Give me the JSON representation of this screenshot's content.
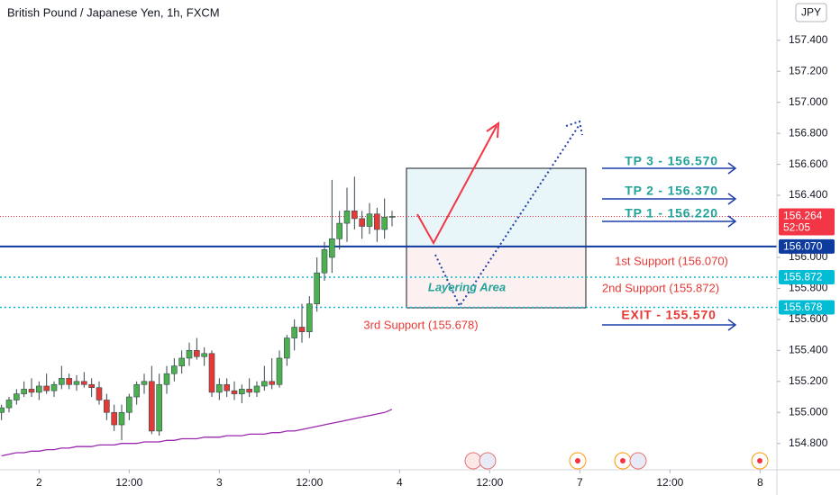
{
  "chart_data": {
    "type": "candlestick",
    "title": "British Pound / Japanese Yen, 1h, FXCM",
    "currency": "JPY",
    "up_color": "#4caf50",
    "down_color": "#e53935",
    "wick_color": "#37474f",
    "open": [
      155.0,
      155.03,
      155.08,
      155.12,
      155.15,
      155.13,
      155.17,
      155.14,
      155.18,
      155.22,
      155.18,
      155.2,
      155.18,
      155.16,
      155.08,
      155.0,
      154.92,
      155.0,
      155.1,
      155.18,
      155.2,
      154.88,
      155.18,
      155.25,
      155.3,
      155.35,
      155.4,
      155.36,
      155.38,
      155.13,
      155.18,
      155.14,
      155.12,
      155.15,
      155.13,
      155.17,
      155.2,
      155.18,
      155.35,
      155.48,
      155.55,
      155.52,
      155.7,
      155.9,
      156.0,
      156.12,
      156.22,
      156.3,
      156.25,
      156.2,
      156.28,
      156.18,
      156.26
    ],
    "high": [
      155.05,
      155.1,
      155.15,
      155.2,
      155.22,
      155.2,
      155.25,
      155.2,
      155.3,
      155.25,
      155.24,
      155.26,
      155.22,
      155.2,
      155.12,
      155.05,
      155.05,
      155.12,
      155.2,
      155.25,
      155.3,
      155.25,
      155.3,
      155.35,
      155.4,
      155.45,
      155.48,
      155.42,
      155.4,
      155.22,
      155.22,
      155.2,
      155.18,
      155.22,
      155.2,
      155.3,
      155.35,
      155.4,
      155.5,
      155.6,
      155.7,
      155.75,
      156.0,
      156.1,
      156.5,
      156.3,
      156.45,
      156.52,
      156.3,
      156.35,
      156.32,
      156.38,
      156.3
    ],
    "low": [
      154.95,
      155.0,
      155.05,
      155.1,
      155.1,
      155.08,
      155.12,
      155.1,
      155.15,
      155.15,
      155.14,
      155.16,
      155.1,
      155.05,
      154.95,
      154.88,
      154.82,
      154.95,
      155.05,
      155.12,
      154.86,
      154.85,
      155.12,
      155.2,
      155.25,
      155.3,
      155.34,
      155.3,
      155.1,
      155.08,
      155.1,
      155.08,
      155.06,
      155.1,
      155.1,
      155.14,
      155.15,
      155.16,
      155.3,
      155.4,
      155.45,
      155.48,
      155.65,
      155.85,
      155.9,
      156.05,
      156.1,
      156.18,
      156.12,
      156.15,
      156.1,
      156.12,
      156.2
    ],
    "close": [
      155.03,
      155.08,
      155.12,
      155.15,
      155.13,
      155.17,
      155.14,
      155.18,
      155.22,
      155.18,
      155.2,
      155.18,
      155.16,
      155.08,
      155.0,
      154.92,
      155.0,
      155.1,
      155.18,
      155.2,
      154.88,
      155.18,
      155.25,
      155.3,
      155.35,
      155.4,
      155.36,
      155.38,
      155.13,
      155.18,
      155.14,
      155.12,
      155.15,
      155.13,
      155.17,
      155.2,
      155.18,
      155.35,
      155.48,
      155.55,
      155.52,
      155.7,
      155.9,
      156.05,
      156.12,
      156.22,
      156.3,
      156.25,
      156.2,
      156.28,
      156.18,
      156.26,
      156.264
    ],
    "ma": {
      "color": "#9c27b0",
      "values": [
        154.72,
        154.73,
        154.74,
        154.74,
        154.75,
        154.75,
        154.76,
        154.76,
        154.77,
        154.77,
        154.78,
        154.78,
        154.78,
        154.79,
        154.79,
        154.79,
        154.8,
        154.8,
        154.8,
        154.81,
        154.81,
        154.81,
        154.82,
        154.82,
        154.83,
        154.83,
        154.83,
        154.84,
        154.84,
        154.84,
        154.85,
        154.85,
        154.85,
        154.86,
        154.86,
        154.86,
        154.87,
        154.87,
        154.88,
        154.88,
        154.89,
        154.9,
        154.91,
        154.92,
        154.93,
        154.94,
        154.95,
        154.96,
        154.97,
        154.98,
        154.99,
        155.0,
        155.02
      ]
    },
    "xlim": [
      -0.2,
      103.24
    ],
    "xticks": [
      {
        "value": 5,
        "label": "2"
      },
      {
        "value": 17,
        "label": "12:00"
      },
      {
        "value": 29,
        "label": "3"
      },
      {
        "value": 41,
        "label": "12:00"
      },
      {
        "value": 53,
        "label": "4"
      },
      {
        "value": 65,
        "label": "12:00"
      },
      {
        "value": 77,
        "label": "7"
      },
      {
        "value": 89,
        "label": "12:00"
      },
      {
        "value": 101,
        "label": "8"
      }
    ],
    "ylim": [
      154.63,
      157.66
    ],
    "yticks": [
      {
        "value": 157.4,
        "label": "157.400"
      },
      {
        "value": 157.2,
        "label": "157.200"
      },
      {
        "value": 157.0,
        "label": "157.000"
      },
      {
        "value": 156.8,
        "label": "156.800"
      },
      {
        "value": 156.6,
        "label": "156.600"
      },
      {
        "value": 156.4,
        "label": "156.400"
      },
      {
        "value": 156.0,
        "label": "156.000"
      },
      {
        "value": 155.8,
        "label": "155.800"
      },
      {
        "value": 155.6,
        "label": "155.600"
      },
      {
        "value": 155.4,
        "label": "155.400"
      },
      {
        "value": 155.2,
        "label": "155.200"
      },
      {
        "value": 155.0,
        "label": "155.000"
      },
      {
        "value": 154.8,
        "label": "154.800"
      }
    ],
    "last_price": 156.264,
    "countdown": "52:05",
    "last_color": "#f23645",
    "price_lines": [
      {
        "value": 156.07,
        "label": "156.070",
        "color": "#0d3c9e",
        "style": "solid"
      },
      {
        "value": 155.872,
        "label": "155.872",
        "color": "#00bcd4",
        "style": "dotted"
      },
      {
        "value": 155.678,
        "label": "155.678",
        "color": "#00bcd4",
        "style": "dotted"
      }
    ],
    "annotations": [
      {
        "text": "TP 3 - 156.570",
        "color": "#22a39a"
      },
      {
        "text": "TP 2 - 156.370",
        "color": "#22a39a"
      },
      {
        "text": "TP 1 - 156.220",
        "color": "#22a39a"
      },
      {
        "text": "1st Support (156.070)",
        "color": "#e53935"
      },
      {
        "text": "2nd Support (155.872)",
        "color": "#e53935"
      },
      {
        "text": "3rd Support (155.678)",
        "color": "#e53935"
      },
      {
        "text": "EXIT - 155.570",
        "color": "#e53935"
      },
      {
        "text": "Layering Area",
        "color": "#22a39a"
      }
    ]
  }
}
